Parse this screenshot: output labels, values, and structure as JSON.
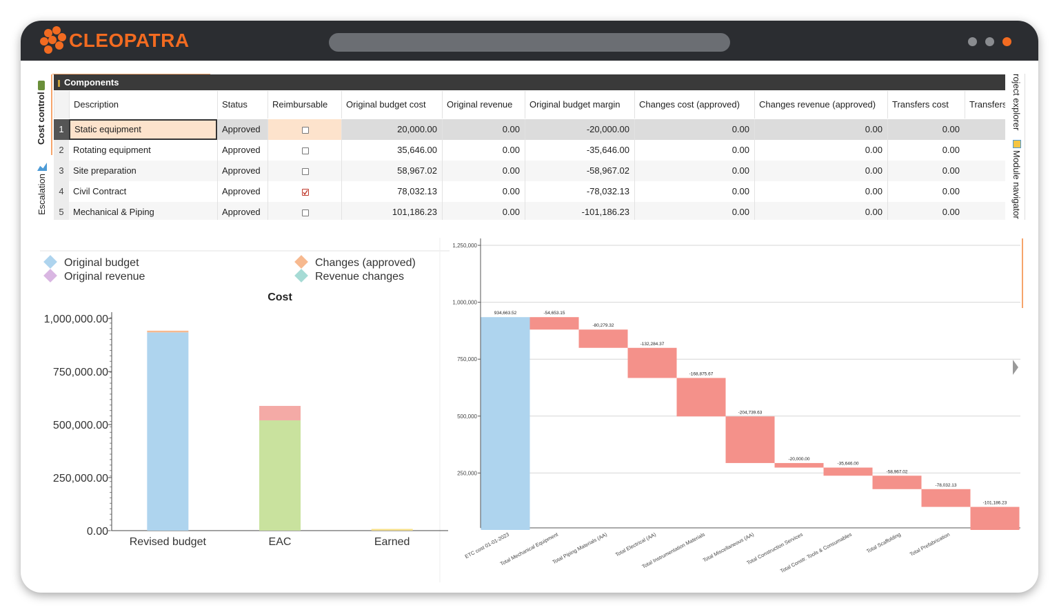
{
  "app": {
    "name": "CLEOPATRA"
  },
  "left_tabs": [
    "Cost control",
    "Escalation"
  ],
  "right_tabs": [
    "roject explorer",
    "Module navigator"
  ],
  "table": {
    "title": "Components",
    "columns": [
      "Description",
      "Status",
      "Reimbursable",
      "Original budget cost",
      "Original revenue",
      "Original budget margin",
      "Changes cost (approved)",
      "Changes revenue (approved)",
      "Transfers cost",
      "Transfers"
    ],
    "rows": [
      {
        "number": 1,
        "description": "Static equipment",
        "status": "Approved",
        "reimbursable": false,
        "values": [
          "20,000.00",
          "0.00",
          "-20,000.00",
          "0.00",
          "0.00",
          "0.00"
        ]
      },
      {
        "number": 2,
        "description": "Rotating equipment",
        "status": "Approved",
        "reimbursable": false,
        "values": [
          "35,646.00",
          "0.00",
          "-35,646.00",
          "0.00",
          "0.00",
          "0.00"
        ]
      },
      {
        "number": 3,
        "description": "Site preparation",
        "status": "Approved",
        "reimbursable": false,
        "values": [
          "58,967.02",
          "0.00",
          "-58,967.02",
          "0.00",
          "0.00",
          "0.00"
        ]
      },
      {
        "number": 4,
        "description": "Civil Contract",
        "status": "Approved",
        "reimbursable": true,
        "values": [
          "78,032.13",
          "0.00",
          "-78,032.13",
          "0.00",
          "0.00",
          "0.00"
        ]
      },
      {
        "number": 5,
        "description": "Mechanical & Piping",
        "status": "Approved",
        "reimbursable": false,
        "values": [
          "101,186.23",
          "0.00",
          "-101,186.23",
          "0.00",
          "0.00",
          "0.00"
        ]
      }
    ]
  },
  "chart_data": [
    {
      "type": "bar",
      "stacked": true,
      "title": "Cost",
      "categories": [
        "Revised budget",
        "EAC",
        "Earned"
      ],
      "series": [
        {
          "name": "Original budget",
          "color": "#aed4ee",
          "values": [
            934663.52,
            null,
            null
          ]
        },
        {
          "name": "Changes (approved)",
          "color": "#f7b98f",
          "values": [
            8000,
            null,
            null
          ]
        },
        {
          "name": "Original revenue",
          "color": "#d9b6e2",
          "values": [
            null,
            null,
            null
          ]
        },
        {
          "name": "Revenue changes",
          "color": "#a6dbd5",
          "values": [
            null,
            null,
            null
          ]
        },
        {
          "color": "#c9e29e",
          "values": [
            null,
            520000,
            null
          ]
        },
        {
          "color": "#f4aaa6",
          "values": [
            null,
            68000,
            null
          ]
        },
        {
          "color": "#f5df8a",
          "values": [
            null,
            null,
            8000
          ]
        }
      ],
      "ylim": [
        0,
        1030000
      ],
      "yticks": [
        {
          "value": 0,
          "label": "0.00"
        },
        {
          "value": 250000,
          "label": "250,000.00"
        },
        {
          "value": 500000,
          "label": "500,000.00"
        },
        {
          "value": 750000,
          "label": "750,000.00"
        },
        {
          "value": 1000000,
          "label": "1,000,000.00"
        }
      ]
    },
    {
      "type": "waterfall",
      "categories": [
        "ETC cost 01-01-2023",
        "Total Mechanical Equipment",
        "Total Piping Materials (AA)",
        "Total Electrical (AA)",
        "Total Instrumentation Materials",
        "Total Miscellaneous (AA)",
        "Total Construction Services",
        "Total Constr. Tools & Consumables",
        "Total Scaffolding",
        "Total Prefabrication",
        null
      ],
      "values": [
        934663.52,
        -54653.15,
        -80279.32,
        -132284.37,
        -168875.67,
        -204739.63,
        -20000.0,
        -35646.0,
        -58967.02,
        -78032.13,
        -101186.23
      ],
      "value_labels": [
        "934,663.52",
        "-54,653.15",
        "-80,279.32",
        "-132,284.37",
        "-168,875.67",
        "-204,739.63",
        "-20,000.00",
        "-35,646.00",
        "-58,967.02",
        "-78,032.13",
        "-101,186.23"
      ],
      "increase_color": "#aed4ee",
      "decrease_color": "#f4918a",
      "ylim": [
        0,
        1250000
      ],
      "yticks": [
        {
          "value": 250000,
          "label": "250,000"
        },
        {
          "value": 500000,
          "label": "500,000"
        },
        {
          "value": 750000,
          "label": "750,000"
        },
        {
          "value": 1000000,
          "label": "1,000,000"
        },
        {
          "value": 1250000,
          "label": "1,250,000"
        }
      ],
      "grid": true
    }
  ]
}
